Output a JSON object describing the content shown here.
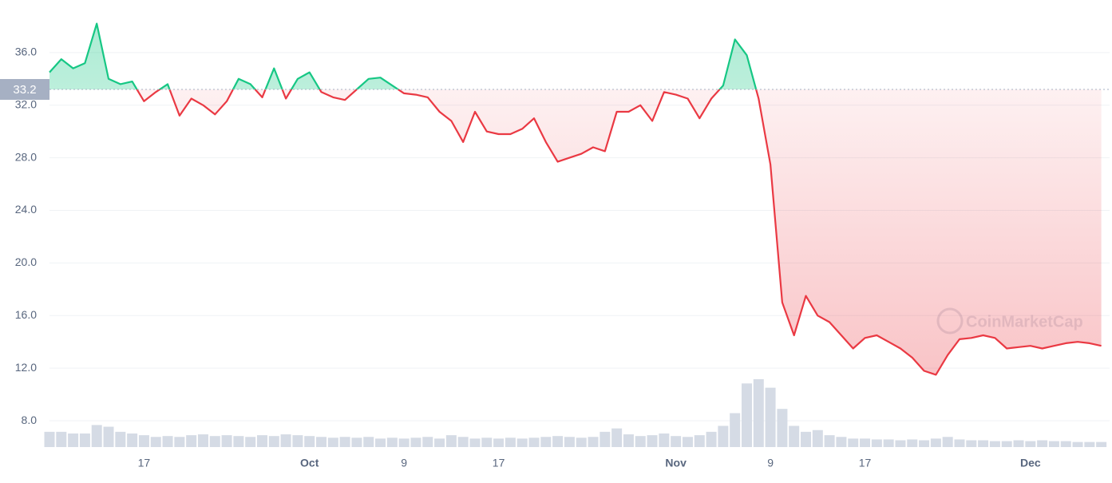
{
  "chart_data": {
    "type": "line",
    "watermark": "CoinMarketCap",
    "baseline": 33.2,
    "above_color": "#16c784",
    "below_color": "#ea3943",
    "volume_color": "#d5dbe5",
    "grid": true,
    "xlim": [
      0,
      89.7
    ],
    "ylim": [
      6,
      40
    ],
    "yticks": [
      {
        "value": 8,
        "label": "8.0"
      },
      {
        "value": 12,
        "label": "12.0"
      },
      {
        "value": 16,
        "label": "16.0"
      },
      {
        "value": 20,
        "label": "20.0"
      },
      {
        "value": 24,
        "label": "24.0"
      },
      {
        "value": 28,
        "label": "28.0"
      },
      {
        "value": 32,
        "label": "32.0"
      },
      {
        "value": 36,
        "label": "36.0"
      }
    ],
    "xticks": [
      {
        "value": 8,
        "label": "17"
      },
      {
        "value": 22,
        "label": "Oct"
      },
      {
        "value": 30,
        "label": "9"
      },
      {
        "value": 38,
        "label": "17"
      },
      {
        "value": 53,
        "label": "Nov"
      },
      {
        "value": 61,
        "label": "9"
      },
      {
        "value": 69,
        "label": "17"
      },
      {
        "value": 83,
        "label": "Dec"
      }
    ],
    "values": [
      34.5,
      35.5,
      34.8,
      35.2,
      38.2,
      34.0,
      33.6,
      33.8,
      32.3,
      33.0,
      33.6,
      31.2,
      32.5,
      32.0,
      31.3,
      32.3,
      34.0,
      33.6,
      32.6,
      34.8,
      32.5,
      34.0,
      34.5,
      33.0,
      32.6,
      32.4,
      33.2,
      34.0,
      34.1,
      33.5,
      32.9,
      32.8,
      32.6,
      31.5,
      30.8,
      29.2,
      31.5,
      30.0,
      29.8,
      29.8,
      30.2,
      31.0,
      29.2,
      27.7,
      28.0,
      28.3,
      28.8,
      28.5,
      31.5,
      31.5,
      32.0,
      30.8,
      33.0,
      32.8,
      32.5,
      31.0,
      32.5,
      33.5,
      37.0,
      35.8,
      32.5,
      27.5,
      17.0,
      14.5,
      17.5,
      16.0,
      15.5,
      14.5,
      13.5,
      14.3,
      14.5,
      14.0,
      13.5,
      12.8,
      11.8,
      11.5,
      13.0,
      14.2,
      14.3,
      14.5,
      14.3,
      13.5,
      13.6,
      13.7,
      13.5,
      13.7,
      13.9,
      14.0,
      13.9,
      13.7
    ],
    "volume": [
      18,
      18,
      16,
      16,
      26,
      24,
      18,
      16,
      14,
      12,
      13,
      12,
      14,
      15,
      13,
      14,
      13,
      12,
      14,
      13,
      15,
      14,
      13,
      12,
      11,
      12,
      11,
      12,
      10,
      11,
      10,
      11,
      12,
      10,
      14,
      12,
      10,
      11,
      10,
      11,
      10,
      11,
      12,
      13,
      12,
      11,
      12,
      18,
      22,
      15,
      13,
      14,
      16,
      13,
      12,
      14,
      18,
      25,
      40,
      75,
      80,
      70,
      45,
      25,
      18,
      20,
      14,
      12,
      10,
      10,
      9,
      9,
      8,
      9,
      8,
      10,
      12,
      9,
      8,
      8,
      7,
      7,
      8,
      7,
      8,
      7,
      7,
      6,
      6,
      6
    ]
  }
}
